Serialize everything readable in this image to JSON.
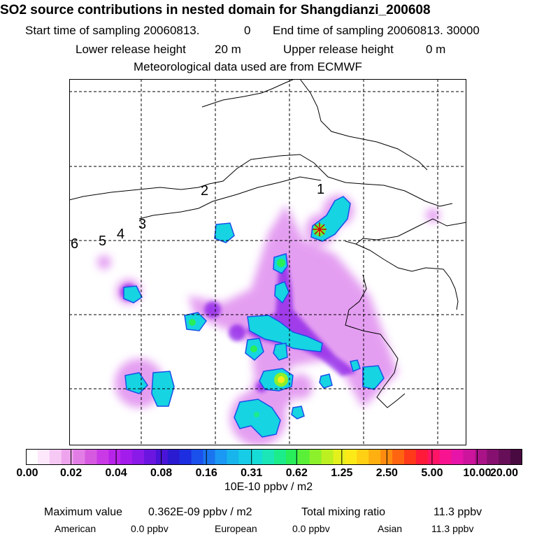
{
  "header": {
    "title": "SO2 source contributions in nested domain for Shangdianzi_200608",
    "start_label": "Start time of sampling 20060813.",
    "start_value": "0",
    "end_label": "End time of sampling 20060813. 30000",
    "lower_label": "Lower release height",
    "lower_value": "20 m",
    "upper_label": "Upper release height",
    "upper_value": "0 m",
    "met_line": "Meteorological data used are from ECMWF"
  },
  "map": {
    "region_labels": [
      "1",
      "2",
      "3",
      "4",
      "5",
      "6"
    ],
    "receptor_icon": "star-marker-icon"
  },
  "colorbar": {
    "tick_labels": [
      "0.00",
      "0.02",
      "0.04",
      "0.08",
      "0.16",
      "0.31",
      "0.62",
      "1.25",
      "2.50",
      "5.00",
      "10.00",
      "20.00"
    ],
    "units": "10E-10 ppbv / m2",
    "colors": [
      "#ffffff",
      "#fde8fb",
      "#f6c8f4",
      "#eea4ec",
      "#e37de6",
      "#d65ae0",
      "#c93ae6",
      "#b823ea",
      "#a21ceb",
      "#8a1ae8",
      "#6b16e0",
      "#4a14d8",
      "#2a1ad0",
      "#1c2ee0",
      "#1a50ec",
      "#1a74f0",
      "#1a98f4",
      "#18b4ec",
      "#16cce6",
      "#16dcd8",
      "#1ae6b8",
      "#1cec8a",
      "#28ee5a",
      "#5af038",
      "#8cf02a",
      "#bcf020",
      "#e4f01c",
      "#fcea18",
      "#ffd014",
      "#ffb010",
      "#ff8c0e",
      "#ff6410",
      "#ff3a1a",
      "#ff1a3a",
      "#ff1466",
      "#f81490",
      "#e614a8",
      "#cc149c",
      "#aa1288",
      "#861070",
      "#660e58",
      "#480a40"
    ]
  },
  "summary": {
    "max_label": "Maximum value",
    "max_value": "0.362E-09 ppbv / m2",
    "total_label": "Total mixing ratio",
    "total_value": "11.3 ppbv",
    "american_label": "American",
    "american_value": "0.0 ppbv",
    "european_label": "European",
    "european_value": "0.0 ppbv",
    "asian_label": "Asian",
    "asian_value": "11.3 ppbv"
  }
}
